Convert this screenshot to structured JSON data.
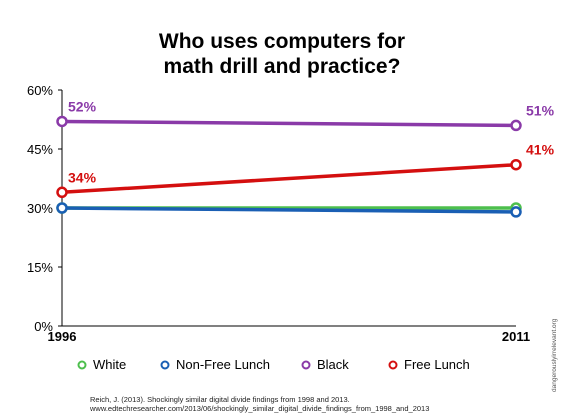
{
  "chart_data": {
    "type": "line",
    "title_lines": [
      "Who uses computers for",
      "math drill and practice?"
    ],
    "x": [
      "1996",
      "2011"
    ],
    "ylim": [
      0,
      60
    ],
    "yticks": [
      "0%",
      "15%",
      "30%",
      "45%",
      "60%"
    ],
    "ytick_values": [
      0,
      15,
      30,
      45,
      60
    ],
    "grid": false,
    "legend_position": "bottom",
    "series": [
      {
        "name": "White",
        "values": [
          30,
          30
        ],
        "color": "#4dbf4d",
        "labels": [
          "",
          ""
        ]
      },
      {
        "name": "Non-Free Lunch",
        "values": [
          30,
          29
        ],
        "color": "#1a5fb4",
        "labels": [
          "",
          ""
        ]
      },
      {
        "name": "Black",
        "values": [
          52,
          51
        ],
        "color": "#8a3aa8",
        "labels": [
          "52%",
          "51%"
        ]
      },
      {
        "name": "Free Lunch",
        "values": [
          34,
          41
        ],
        "color": "#d40f0f",
        "labels": [
          "34%",
          "41%"
        ]
      }
    ]
  },
  "citation_lines": [
    "Reich, J. (2013). Shockingly similar digital divide findings from 1998 and 2013.",
    "www.edtechresearcher.com/2013/06/shockingly_similar_digital_divide_findings_from_1998_and_2013"
  ],
  "credit": "dangerouslyirrelevant.org"
}
